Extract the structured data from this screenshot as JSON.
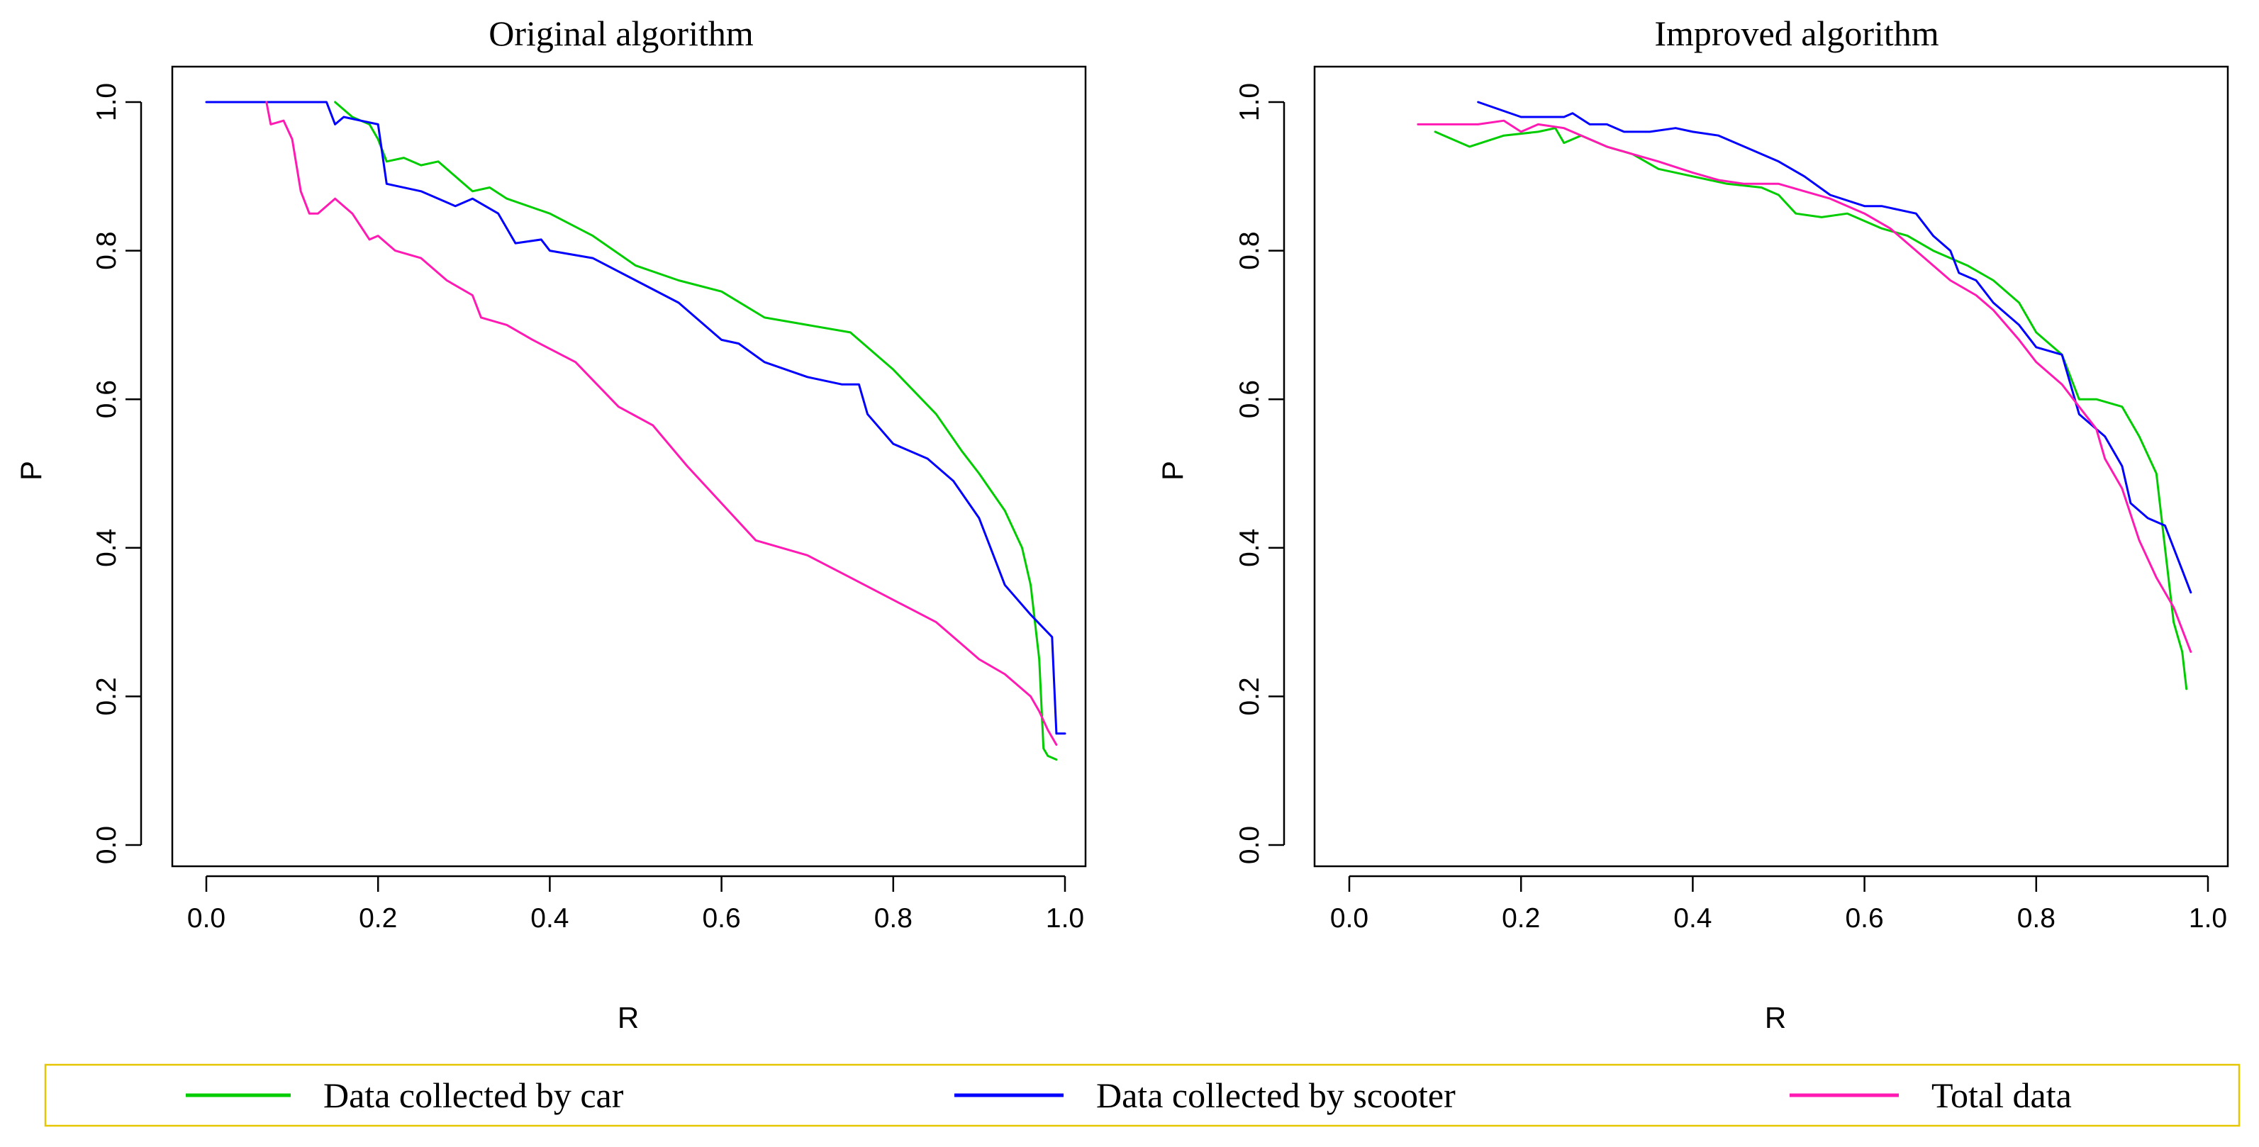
{
  "chart_data": [
    {
      "type": "line",
      "title": "Original algorithm",
      "xlabel": "R",
      "ylabel": "P",
      "xlim": [
        0.0,
        1.0
      ],
      "ylim": [
        0.0,
        1.0
      ],
      "xticks": [
        "0.0",
        "0.2",
        "0.4",
        "0.6",
        "0.8",
        "1.0"
      ],
      "yticks": [
        "0.0",
        "0.2",
        "0.4",
        "0.6",
        "0.8",
        "1.0"
      ],
      "series": [
        {
          "name": "Data collected by car",
          "color": "#00cc00",
          "x": [
            0.15,
            0.17,
            0.19,
            0.2,
            0.21,
            0.23,
            0.25,
            0.27,
            0.29,
            0.31,
            0.33,
            0.35,
            0.4,
            0.45,
            0.5,
            0.55,
            0.6,
            0.65,
            0.7,
            0.75,
            0.8,
            0.85,
            0.88,
            0.9,
            0.93,
            0.95,
            0.96,
            0.97,
            0.975,
            0.98,
            0.99
          ],
          "y": [
            1.0,
            0.98,
            0.97,
            0.95,
            0.92,
            0.925,
            0.915,
            0.92,
            0.9,
            0.88,
            0.885,
            0.87,
            0.85,
            0.82,
            0.78,
            0.76,
            0.745,
            0.71,
            0.7,
            0.69,
            0.64,
            0.58,
            0.53,
            0.5,
            0.45,
            0.4,
            0.35,
            0.25,
            0.13,
            0.12,
            0.115
          ]
        },
        {
          "name": "Data collected by scooter",
          "color": "#0000ff",
          "x": [
            0.0,
            0.14,
            0.15,
            0.16,
            0.2,
            0.21,
            0.25,
            0.29,
            0.31,
            0.34,
            0.36,
            0.39,
            0.4,
            0.45,
            0.5,
            0.55,
            0.6,
            0.62,
            0.65,
            0.7,
            0.74,
            0.75,
            0.76,
            0.77,
            0.8,
            0.84,
            0.87,
            0.9,
            0.93,
            0.96,
            0.985,
            0.99,
            1.0
          ],
          "y": [
            1.0,
            1.0,
            0.97,
            0.98,
            0.97,
            0.89,
            0.88,
            0.86,
            0.87,
            0.85,
            0.81,
            0.815,
            0.8,
            0.79,
            0.76,
            0.73,
            0.68,
            0.675,
            0.65,
            0.63,
            0.62,
            0.62,
            0.62,
            0.58,
            0.54,
            0.52,
            0.49,
            0.44,
            0.35,
            0.31,
            0.28,
            0.15,
            0.15
          ]
        },
        {
          "name": "Total data",
          "color": "#ff1ab3",
          "x": [
            0.07,
            0.075,
            0.09,
            0.1,
            0.11,
            0.12,
            0.13,
            0.15,
            0.17,
            0.19,
            0.2,
            0.22,
            0.25,
            0.28,
            0.31,
            0.32,
            0.35,
            0.38,
            0.43,
            0.48,
            0.52,
            0.56,
            0.6,
            0.64,
            0.7,
            0.75,
            0.8,
            0.85,
            0.88,
            0.9,
            0.93,
            0.96,
            0.97,
            0.98,
            0.99
          ],
          "y": [
            1.0,
            0.97,
            0.975,
            0.95,
            0.88,
            0.85,
            0.85,
            0.87,
            0.85,
            0.815,
            0.82,
            0.8,
            0.79,
            0.76,
            0.74,
            0.71,
            0.7,
            0.68,
            0.65,
            0.59,
            0.565,
            0.51,
            0.46,
            0.41,
            0.39,
            0.36,
            0.33,
            0.3,
            0.27,
            0.25,
            0.23,
            0.2,
            0.18,
            0.155,
            0.135
          ]
        }
      ]
    },
    {
      "type": "line",
      "title": "Improved algorithm",
      "xlabel": "R",
      "ylabel": "P",
      "xlim": [
        0.0,
        1.0
      ],
      "ylim": [
        0.0,
        1.0
      ],
      "xticks": [
        "0.0",
        "0.2",
        "0.4",
        "0.6",
        "0.8",
        "1.0"
      ],
      "yticks": [
        "0.0",
        "0.2",
        "0.4",
        "0.6",
        "0.8",
        "1.0"
      ],
      "series": [
        {
          "name": "Data collected by car",
          "color": "#00cc00",
          "x": [
            0.1,
            0.14,
            0.18,
            0.22,
            0.24,
            0.25,
            0.27,
            0.3,
            0.33,
            0.36,
            0.4,
            0.44,
            0.48,
            0.5,
            0.52,
            0.55,
            0.58,
            0.6,
            0.62,
            0.65,
            0.68,
            0.72,
            0.75,
            0.78,
            0.8,
            0.83,
            0.85,
            0.87,
            0.9,
            0.92,
            0.94,
            0.95,
            0.96,
            0.97,
            0.975
          ],
          "y": [
            0.96,
            0.94,
            0.955,
            0.96,
            0.965,
            0.945,
            0.955,
            0.94,
            0.93,
            0.91,
            0.9,
            0.89,
            0.885,
            0.875,
            0.85,
            0.845,
            0.85,
            0.84,
            0.83,
            0.82,
            0.8,
            0.78,
            0.76,
            0.73,
            0.69,
            0.66,
            0.6,
            0.6,
            0.59,
            0.55,
            0.5,
            0.4,
            0.3,
            0.26,
            0.21
          ]
        },
        {
          "name": "Data collected by scooter",
          "color": "#0000ff",
          "x": [
            0.15,
            0.2,
            0.25,
            0.26,
            0.28,
            0.3,
            0.32,
            0.35,
            0.38,
            0.4,
            0.43,
            0.46,
            0.5,
            0.53,
            0.56,
            0.6,
            0.62,
            0.66,
            0.68,
            0.7,
            0.71,
            0.73,
            0.75,
            0.78,
            0.8,
            0.83,
            0.85,
            0.88,
            0.9,
            0.91,
            0.93,
            0.95,
            0.97,
            0.98
          ],
          "y": [
            1.0,
            0.98,
            0.98,
            0.985,
            0.97,
            0.97,
            0.96,
            0.96,
            0.965,
            0.96,
            0.955,
            0.94,
            0.92,
            0.9,
            0.875,
            0.86,
            0.86,
            0.85,
            0.82,
            0.8,
            0.77,
            0.76,
            0.73,
            0.7,
            0.67,
            0.66,
            0.58,
            0.55,
            0.51,
            0.46,
            0.44,
            0.43,
            0.37,
            0.34
          ]
        },
        {
          "name": "Total data",
          "color": "#ff1ab3",
          "x": [
            0.08,
            0.12,
            0.15,
            0.18,
            0.2,
            0.22,
            0.25,
            0.28,
            0.3,
            0.33,
            0.36,
            0.4,
            0.43,
            0.46,
            0.5,
            0.53,
            0.56,
            0.6,
            0.63,
            0.66,
            0.7,
            0.73,
            0.75,
            0.78,
            0.8,
            0.83,
            0.85,
            0.87,
            0.88,
            0.9,
            0.92,
            0.94,
            0.96,
            0.98
          ],
          "y": [
            0.97,
            0.97,
            0.97,
            0.975,
            0.96,
            0.97,
            0.965,
            0.95,
            0.94,
            0.93,
            0.92,
            0.905,
            0.895,
            0.89,
            0.89,
            0.88,
            0.87,
            0.85,
            0.83,
            0.8,
            0.76,
            0.74,
            0.72,
            0.68,
            0.65,
            0.62,
            0.59,
            0.56,
            0.52,
            0.48,
            0.41,
            0.36,
            0.32,
            0.26
          ]
        }
      ]
    }
  ],
  "legend": {
    "items": [
      {
        "label": "Data collected by car",
        "color": "#00cc00"
      },
      {
        "label": "Data collected by scooter",
        "color": "#0000ff"
      },
      {
        "label": "Total data",
        "color": "#ff1ab3"
      }
    ],
    "border_color": "#e6c600"
  }
}
